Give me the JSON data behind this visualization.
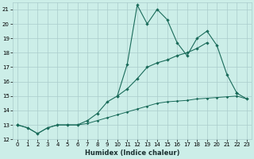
{
  "background_color": "#cceee8",
  "grid_color": "#aacccc",
  "line_color": "#1a6b5a",
  "xlabel": "Humidex (Indice chaleur)",
  "x_all": [
    0,
    1,
    2,
    3,
    4,
    5,
    6,
    7,
    8,
    9,
    10,
    11,
    12,
    13,
    14,
    15,
    16,
    17,
    18,
    19,
    20,
    21,
    22,
    23
  ],
  "line1_y": [
    13.0,
    12.8,
    12.4,
    12.8,
    13.0,
    13.0,
    13.0,
    13.3,
    13.8,
    14.6,
    15.0,
    15.5,
    16.2,
    17.0,
    17.3,
    17.5,
    17.8,
    18.0,
    18.3,
    18.7,
    null,
    null,
    null,
    null
  ],
  "line2_y": [
    13.0,
    null,
    null,
    null,
    null,
    null,
    null,
    null,
    null,
    null,
    null,
    17.2,
    21.3,
    20.0,
    21.0,
    20.3,
    null,
    17.8,
    null,
    19.5,
    18.5,
    null,
    null,
    null
  ],
  "line3_y": [
    13.0,
    12.8,
    12.4,
    12.8,
    13.0,
    13.0,
    13.0,
    13.1,
    13.3,
    13.5,
    13.7,
    13.9,
    14.1,
    14.3,
    14.5,
    14.6,
    14.65,
    14.7,
    14.8,
    14.85,
    14.9,
    14.95,
    15.0,
    14.8
  ],
  "line2_full": [
    13.0,
    null,
    null,
    null,
    null,
    null,
    null,
    null,
    null,
    null,
    15.0,
    17.2,
    21.3,
    20.0,
    21.0,
    20.3,
    18.7,
    17.8,
    19.0,
    19.5,
    18.5,
    16.5,
    15.2,
    null
  ],
  "line4_y": [
    null,
    null,
    null,
    null,
    null,
    null,
    null,
    null,
    null,
    null,
    null,
    null,
    null,
    null,
    null,
    null,
    null,
    null,
    null,
    null,
    null,
    null,
    15.2,
    14.8
  ],
  "xlim": [
    0,
    23
  ],
  "ylim": [
    12.0,
    21.5
  ],
  "yticks": [
    12,
    13,
    14,
    15,
    16,
    17,
    18,
    19,
    20,
    21
  ],
  "xticks": [
    0,
    1,
    2,
    3,
    4,
    5,
    6,
    7,
    8,
    9,
    10,
    11,
    12,
    13,
    14,
    15,
    16,
    17,
    18,
    19,
    20,
    21,
    22,
    23
  ]
}
